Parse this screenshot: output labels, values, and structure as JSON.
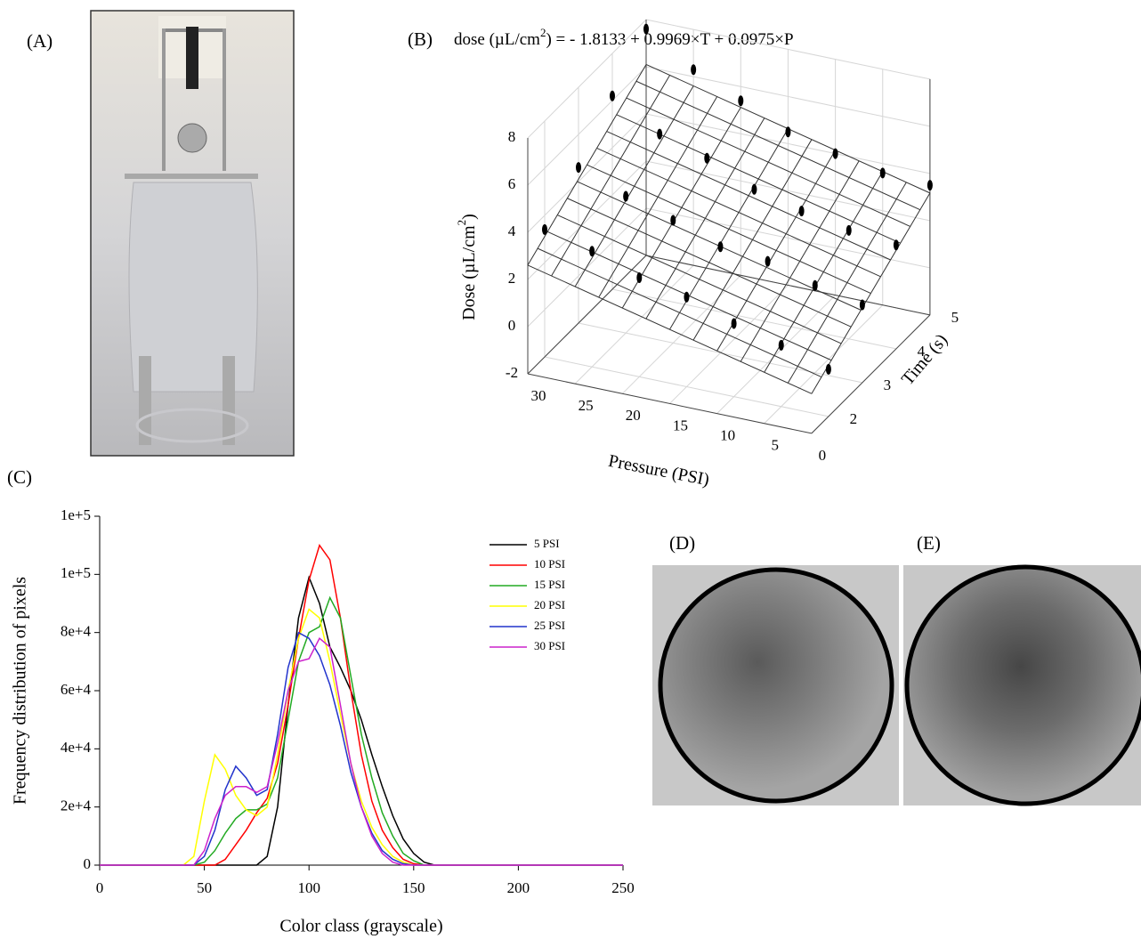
{
  "panels": {
    "A": "(A)",
    "B": "(B)",
    "C": "(C)",
    "D": "(D)",
    "E": "(E)"
  },
  "chart_data": [
    {
      "type": "line",
      "xlabel": "Color class (grayscale)",
      "ylabel": "Frequency distribution of pixels",
      "xlim": [
        0,
        250
      ],
      "xticks": [
        0,
        50,
        100,
        150,
        200,
        250
      ],
      "ylim": [
        0,
        120000
      ],
      "yticks": [
        0,
        {
          "value": 20000,
          "label": "2e+4"
        },
        {
          "value": 40000,
          "label": "4e+4"
        },
        {
          "value": 60000,
          "label": "6e+4"
        },
        {
          "value": 80000,
          "label": "8e+4"
        },
        {
          "value": 100000,
          "label": "1e+5"
        },
        {
          "value": 120000,
          "label": "1e+5"
        }
      ],
      "x": [
        0,
        40,
        45,
        50,
        55,
        60,
        65,
        70,
        75,
        80,
        85,
        90,
        95,
        100,
        105,
        110,
        115,
        120,
        125,
        130,
        135,
        140,
        145,
        150,
        155,
        160,
        165,
        250
      ],
      "series": [
        {
          "name": "5 PSI",
          "color": "#000000",
          "values": [
            0,
            0,
            0,
            0,
            0,
            0,
            0,
            0,
            0,
            3000,
            20000,
            55000,
            85000,
            99000,
            90000,
            75000,
            68000,
            60000,
            50000,
            38000,
            27000,
            17000,
            9000,
            4000,
            1000,
            0,
            0,
            0
          ]
        },
        {
          "name": "10 PSI",
          "color": "#ff0000",
          "values": [
            0,
            0,
            0,
            0,
            0,
            2000,
            7000,
            12000,
            18000,
            23000,
            35000,
            55000,
            78000,
            98000,
            110000,
            105000,
            85000,
            60000,
            38000,
            22000,
            12000,
            6000,
            2000,
            500,
            0,
            0,
            0,
            0
          ]
        },
        {
          "name": "15 PSI",
          "color": "#22aa22",
          "values": [
            0,
            0,
            0,
            1000,
            5000,
            11000,
            16000,
            19000,
            19000,
            21000,
            30000,
            50000,
            70000,
            80000,
            82000,
            92000,
            85000,
            65000,
            45000,
            30000,
            18000,
            10000,
            4000,
            1500,
            0,
            0,
            0,
            0
          ]
        },
        {
          "name": "20 PSI",
          "color": "#ffff00",
          "values": [
            0,
            0,
            3000,
            22000,
            38000,
            33000,
            24000,
            19000,
            17000,
            20000,
            38000,
            60000,
            78000,
            88000,
            85000,
            70000,
            52000,
            35000,
            22000,
            13000,
            7000,
            3000,
            1000,
            0,
            0,
            0,
            0,
            0
          ]
        },
        {
          "name": "25 PSI",
          "color": "#2233cc",
          "values": [
            0,
            0,
            0,
            3000,
            12000,
            26000,
            34000,
            30000,
            24000,
            26000,
            45000,
            68000,
            80000,
            78000,
            72000,
            62000,
            48000,
            32000,
            20000,
            11000,
            5000,
            2000,
            500,
            0,
            0,
            0,
            0,
            0
          ]
        },
        {
          "name": "30 PSI",
          "color": "#cc22cc",
          "values": [
            0,
            0,
            0,
            5000,
            16000,
            24000,
            27000,
            27000,
            25000,
            27000,
            42000,
            60000,
            70000,
            71000,
            78000,
            75000,
            55000,
            35000,
            20000,
            10000,
            4000,
            1000,
            0,
            0,
            0,
            0,
            0,
            0
          ]
        }
      ]
    },
    {
      "type": "scatter3d",
      "title": [
        "dose (µL/cm",
        "2",
        ") = - 1.8133 + 0.9969×T + 0.0975×P"
      ],
      "xlabel": "Pressure (PSI)",
      "ylabel": "Time (s)",
      "zlabel": [
        "Dose (µL/cm",
        "2",
        ")"
      ],
      "xlim": [
        0,
        30
      ],
      "xticks": [
        0,
        5,
        10,
        15,
        20,
        25,
        30
      ],
      "ylim": [
        1.5,
        5
      ],
      "yticks": [
        2,
        3,
        4,
        5
      ],
      "zlim": [
        -2,
        8
      ],
      "zticks": [
        -2,
        0,
        2,
        4,
        6,
        8
      ],
      "fit": {
        "intercept": -1.8133,
        "time": 0.9969,
        "pressure": 0.0975
      },
      "color": "#000000",
      "x": [
        0,
        5,
        10,
        15,
        20,
        25,
        30,
        0,
        5,
        10,
        15,
        20,
        25,
        30,
        0,
        5,
        10,
        15,
        20,
        25,
        30,
        0,
        5,
        10,
        15,
        20,
        25,
        30
      ],
      "y": [
        2,
        2,
        2,
        2,
        2,
        2,
        2,
        3,
        3,
        3,
        3,
        3,
        3,
        3,
        4,
        4,
        4,
        4,
        4,
        4,
        4,
        5,
        5,
        5,
        5,
        5,
        5,
        5
      ],
      "z": [
        0.0,
        0.6,
        1.1,
        1.8,
        2.2,
        2.9,
        3.4,
        1.3,
        1.7,
        2.3,
        2.5,
        3.2,
        3.8,
        4.6,
        2.4,
        2.6,
        3.0,
        3.5,
        4.4,
        5.0,
        6.2,
        3.5,
        3.6,
        4.0,
        4.5,
        5.4,
        6.3,
        7.6
      ]
    }
  ]
}
